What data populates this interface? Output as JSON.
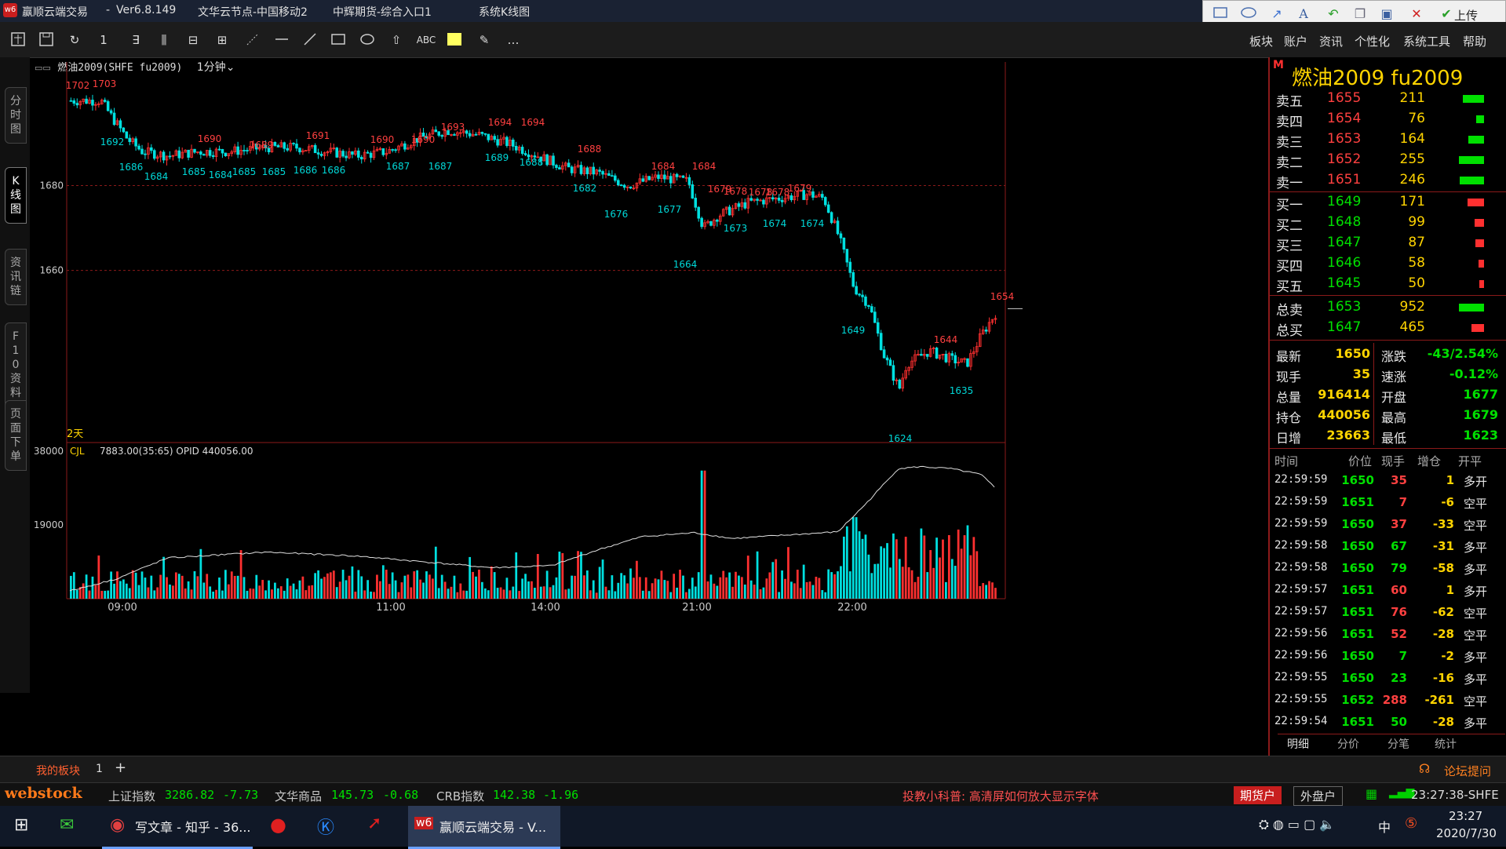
{
  "titlebar": {
    "app_name": "赢顺云端交易",
    "dash": "-",
    "version": "Ver6.8.149",
    "node": "文华云节点-中国移动2",
    "broker": "中辉期货-综合入口1",
    "window": "系统K线图",
    "upload_label": "上传"
  },
  "toolbar": {
    "items": [
      "1",
      "∃",
      "⫼",
      "⊟",
      "⊞",
      "ABC",
      "…"
    ],
    "right_menu": [
      "板块",
      "账户",
      "资讯",
      "个性化",
      "系统工具",
      "帮助"
    ]
  },
  "leftbar": {
    "tabs": [
      "分时图",
      "K线图",
      "资讯链",
      "F10资料",
      "页面下单"
    ]
  },
  "chart_header": {
    "symbol_label": "燃油2009(SHFE fu2009)",
    "period": "1分钟",
    "days_label": "2天",
    "volume_indicator": "CJL",
    "volume_info": "7883.00(35:65)  OPID 440056.00"
  },
  "chart_data": {
    "type": "candlestick",
    "price_ticks": [
      "1680",
      "1660"
    ],
    "volume_ticks": [
      "38000",
      "19000"
    ],
    "time_labels": [
      "09:00",
      "11:00",
      "14:00",
      "21:00",
      "22:00"
    ],
    "price_range": [
      1620,
      1708
    ],
    "volume_range": [
      0,
      38000
    ],
    "high_labels": [
      "1702",
      "1703",
      "1690",
      "1689",
      "1691",
      "1690",
      "1690",
      "1693",
      "1694",
      "1694",
      "1688",
      "1684",
      "1684",
      "1679",
      "1678",
      "1678",
      "1678",
      "1679",
      "1644",
      "1654"
    ],
    "low_labels": [
      "1692",
      "1686",
      "1684",
      "1685",
      "1684",
      "1685",
      "1685",
      "1686",
      "1686",
      "1687",
      "1687",
      "1689",
      "1688",
      "1682",
      "1676",
      "1677",
      "1664",
      "1673",
      "1674",
      "1674",
      "1649",
      "1624",
      "1635"
    ],
    "colors": {
      "up": "#ff3030",
      "down": "#00e0e0",
      "grid": "#8b1a1a",
      "oi_line": "#e0e0e0"
    }
  },
  "panel": {
    "title": "燃油2009  fu2009",
    "flag": "M",
    "asks": [
      {
        "label": "卖五",
        "price": "1655",
        "vol": "211",
        "bar": 0.83
      },
      {
        "label": "卖四",
        "price": "1654",
        "vol": "76",
        "bar": 0.3
      },
      {
        "label": "卖三",
        "price": "1653",
        "vol": "164",
        "bar": 0.64
      },
      {
        "label": "卖二",
        "price": "1652",
        "vol": "255",
        "bar": 1.0
      },
      {
        "label": "卖一",
        "price": "1651",
        "vol": "246",
        "bar": 0.96
      }
    ],
    "bids": [
      {
        "label": "买一",
        "price": "1649",
        "vol": "171",
        "bar": 0.67
      },
      {
        "label": "买二",
        "price": "1648",
        "vol": "99",
        "bar": 0.39
      },
      {
        "label": "买三",
        "price": "1647",
        "vol": "87",
        "bar": 0.34
      },
      {
        "label": "买四",
        "price": "1646",
        "vol": "58",
        "bar": 0.23
      },
      {
        "label": "买五",
        "price": "1645",
        "vol": "50",
        "bar": 0.2
      }
    ],
    "totals": [
      {
        "label": "总卖",
        "price": "1653",
        "vol": "952",
        "bar": 1.0,
        "color": "green"
      },
      {
        "label": "总买",
        "price": "1647",
        "vol": "465",
        "bar": 0.49,
        "color": "red"
      }
    ],
    "stats": [
      {
        "l1": "最新",
        "v1": "1650",
        "l2": "涨跌",
        "v2": "-43/2.54%"
      },
      {
        "l1": "现手",
        "v1": "35",
        "l2": "速涨",
        "v2": "-0.12%"
      },
      {
        "l1": "总量",
        "v1": "916414",
        "l2": "开盘",
        "v2": "1677"
      },
      {
        "l1": "持仓",
        "v1": "440056",
        "l2": "最高",
        "v2": "1679"
      },
      {
        "l1": "日增",
        "v1": "23663",
        "l2": "最低",
        "v2": "1623"
      }
    ],
    "tick_headers": [
      "时间",
      "价位",
      "现手",
      "增仓",
      "开平"
    ],
    "ticks": [
      {
        "time": "22:59:59",
        "price": "1650",
        "vol": "35",
        "oi": "1",
        "type": "多开",
        "pc": "green",
        "vc": "red",
        "oc": "yellow"
      },
      {
        "time": "22:59:59",
        "price": "1651",
        "vol": "7",
        "oi": "-6",
        "type": "空平",
        "pc": "green",
        "vc": "red",
        "oc": "yellow"
      },
      {
        "time": "22:59:59",
        "price": "1650",
        "vol": "37",
        "oi": "-33",
        "type": "空平",
        "pc": "green",
        "vc": "red",
        "oc": "yellow"
      },
      {
        "time": "22:59:58",
        "price": "1650",
        "vol": "67",
        "oi": "-31",
        "type": "多平",
        "pc": "green",
        "vc": "green",
        "oc": "yellow"
      },
      {
        "time": "22:59:58",
        "price": "1650",
        "vol": "79",
        "oi": "-58",
        "type": "多平",
        "pc": "green",
        "vc": "green",
        "oc": "yellow"
      },
      {
        "time": "22:59:57",
        "price": "1651",
        "vol": "60",
        "oi": "1",
        "type": "多开",
        "pc": "green",
        "vc": "red",
        "oc": "yellow"
      },
      {
        "time": "22:59:57",
        "price": "1651",
        "vol": "76",
        "oi": "-62",
        "type": "空平",
        "pc": "green",
        "vc": "red",
        "oc": "yellow"
      },
      {
        "time": "22:59:56",
        "price": "1651",
        "vol": "52",
        "oi": "-28",
        "type": "空平",
        "pc": "green",
        "vc": "red",
        "oc": "yellow"
      },
      {
        "time": "22:59:56",
        "price": "1650",
        "vol": "7",
        "oi": "-2",
        "type": "多平",
        "pc": "green",
        "vc": "green",
        "oc": "yellow"
      },
      {
        "time": "22:59:55",
        "price": "1650",
        "vol": "23",
        "oi": "-16",
        "type": "多平",
        "pc": "green",
        "vc": "green",
        "oc": "yellow"
      },
      {
        "time": "22:59:55",
        "price": "1652",
        "vol": "288",
        "oi": "-261",
        "type": "空平",
        "pc": "green",
        "vc": "red",
        "oc": "yellow"
      },
      {
        "time": "22:59:54",
        "price": "1651",
        "vol": "50",
        "oi": "-28",
        "type": "多平",
        "pc": "green",
        "vc": "green",
        "oc": "yellow"
      }
    ],
    "bottom_tabs": [
      "明细",
      "分价",
      "分笔",
      "统计"
    ]
  },
  "mybar": {
    "label": "我的板块",
    "count": "1",
    "add": "+",
    "help": "论坛提问"
  },
  "statusbar": {
    "logo": "webstock",
    "idx1_name": "上证指数",
    "idx1_val": "3286.82",
    "idx1_chg": "-7.73",
    "idx2_name": "文华商品",
    "idx2_val": "145.73",
    "idx2_chg": "-0.68",
    "idx3_name": "CRB指数",
    "idx3_val": "142.38",
    "idx3_chg": "-1.96",
    "tip": "投教小科普: 高清屏如何放大显示字体",
    "acct1": "期货户",
    "acct2": "外盘户",
    "clock": "23:27:38-SHFE"
  },
  "taskbar": {
    "app1": "写文章 - 知乎 - 36...",
    "app2": "赢顺云端交易 - V...",
    "ime": "中",
    "time": "23:27",
    "date": "2020/7/30"
  }
}
